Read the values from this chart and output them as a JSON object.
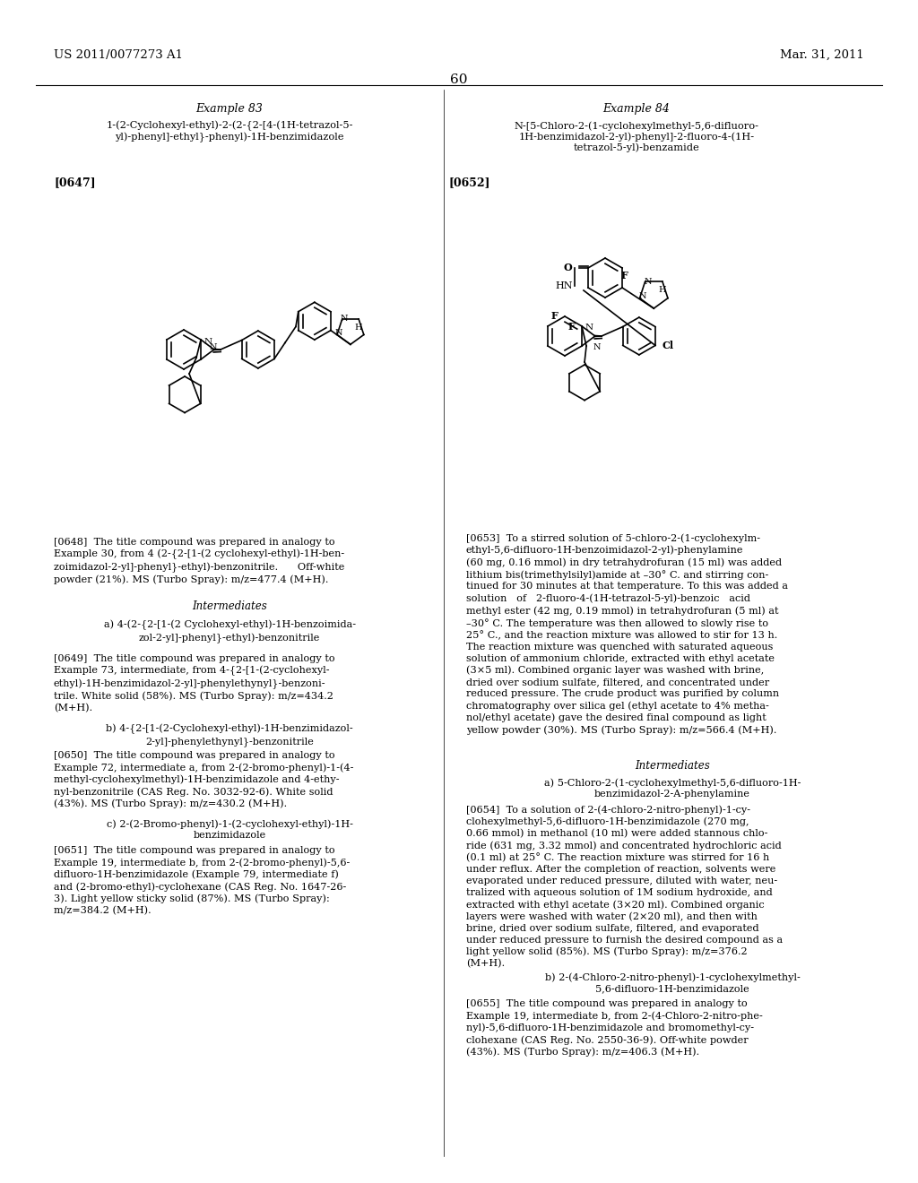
{
  "page_header_left": "US 2011/0077273 A1",
  "page_header_right": "Mar. 31, 2011",
  "page_number": "60",
  "background_color": "#ffffff",
  "text_color": "#000000",
  "example83_title": "Example 83",
  "example83_compound": "1-(2-Cyclohexyl-ethyl)-2-(2-{2-[4-(1H-tetrazol-5-\nyl)-phenyl]-ethyl}-phenyl)-1H-benzimidazole",
  "example83_ref": "[0647]",
  "example84_title": "Example 84",
  "example84_compound": "N-[5-Chloro-2-(1-cyclohexylmethyl-5,6-difluoro-\n1H-benzimidazol-2-yl)-phenyl]-2-fluoro-4-(1H-\ntetrazol-5-yl)-benzamide",
  "example84_ref": "[0652]",
  "para0648": "[0648] The title compound was prepared in analogy to Example 30, from 4 (2-{2-[1-(2 cyclohexyl-ethyl)-1H-benzoimidazol-2-yl]-phenyl}-ethyl)-benzonitrile. Off-white powder (21%). MS (Turbo Spray): m/z=477.4 (M+H).",
  "intermediates1": "Intermediates",
  "int1a_title": "a) 4-(2-{2-[1-(2 Cyclohexyl-ethyl)-1H-benzoimida-\nzol-2-yl]-phenyl}-ethyl)-benzonitrile",
  "para0649": "[0649] The title compound was prepared in analogy to Example 73, intermediate, from 4-{2-[1-(2-cyclohexyl-ethyl)-1H-benzimidazol-2-yl]-phenylethynyl}-benzonitrile. White solid (58%). MS (Turbo Spray): m/z=434.2 (M+H).",
  "int1b_title": "b) 4-{2-[1-(2-Cyclohexyl-ethyl)-1H-benzimidazol-\n2-yl]-phenylethynyl}-benzonitrile",
  "para0650": "[0650] The title compound was prepared in analogy to Example 72, intermediate a, from 2-(2-bromo-phenyl)-1-(4-methyl-cyclohexylmethyl)-1H-benzimidazole and 4-ethynyl-benzonitrile (CAS Reg. No. 3032-92-6). White solid (43%). MS (Turbo Spray): m/z=430.2 (M+H).",
  "int1c_title": "c) 2-(2-Bromo-phenyl)-1-(2-cyclohexyl-ethyl)-1H-\nbenzimidazole",
  "para0651": "[0651] The title compound was prepared in analogy to Example 19, intermediate b, from 2-(2-bromo-phenyl)-5,6-difluoro-1H-benzimidazole (Example 79, intermediate f) and (2-bromo-ethyl)-cyclohexane (CAS Reg. No. 1647-26-3). Light yellow sticky solid (87%). MS (Turbo Spray): m/z=384.2 (M+H).",
  "para0653": "[0653] To a stirred solution of 5-chloro-2-(1-cyclohexylmethyl-5,6-difluoro-1H-benzoimidazol-2-yl)-phenylamine (60 mg, 0.16 mmol) in dry tetrahydrofuran (15 ml) was added lithium bis(trimethylsilyl)amide at –30° C. and stirring continued for 30 minutes at that temperature. To this was added a solution of 2-fluoro-4-(1H-tetrazol-5-yl)-benzoic acid methyl ester (42 mg, 0.19 mmol) in tetrahydrofuran (5 ml) at –30° C. The temperature was then allowed to slowly rise to 25° C., and the reaction mixture was allowed to stir for 13 h. The reaction mixture was quenched with saturated aqueous solution of ammonium chloride, extracted with ethyl acetate (3×5 ml). Combined organic layer was washed with brine, dried over sodium sulfate, filtered, and concentrated under reduced pressure. The crude product was purified by column chromatography over silica gel (ethyl acetate to 4% methanol/ethyl acetate) gave the desired final compound as light yellow powder (30%). MS (Turbo Spray): m/z=566.4 (M+H).",
  "intermediates2": "Intermediates",
  "int2a_title": "a) 5-Chloro-2-(1-cyclohexylmethyl-5,6-difluoro-1H-\nbenzimidazol-2-A-phenylamine",
  "para0654": "[0654] To a solution of 2-(4-chloro-2-nitro-phenyl)-1-cyclohexylmethyl-5,6-difluoro-1H-benzimidazole (270 mg, 0.66 mmol) in methanol (10 ml) were added stannous chloride (631 mg, 3.32 mmol) and concentrated hydrochloric acid (0.1 ml) at 25° C. The reaction mixture was stirred for 16 h under reflux. After the completion of reaction, solvents were evaporated under reduced pressure, diluted with water, neutralized with aqueous solution of 1M sodium hydroxide, and extracted with ethyl acetate (3×20 ml). Combined organic layers were washed with water (2×20 ml), and then with brine, dried over sodium sulfate, filtered, and evaporated under reduced pressure to furnish the desired compound as a light yellow solid (85%). MS (Turbo Spray): m/z=376.2 (M+H).",
  "int2b_title": "b) 2-(4-Chloro-2-nitro-phenyl)-1-cyclohexylmethyl-\n5,6-difluoro-1H-benzimidazole",
  "para0655": "[0655] The title compound was prepared in analogy to Example 19, intermediate b, from 2-(4-Chloro-2-nitro-phenyl)-5,6-difluoro-1H-benzimidazole and bromomethyl-cyclohexane (CAS Reg. No. 2550-36-9). Off-white powder (43%). MS (Turbo Spray): m/z=406.3 (M+H)."
}
